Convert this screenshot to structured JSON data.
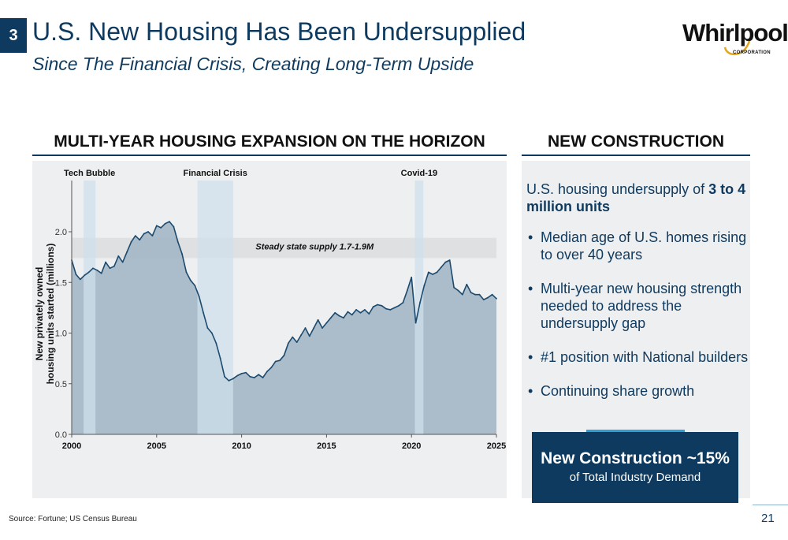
{
  "header": {
    "slide_number": "3",
    "title": "U.S. New Housing Has Been Undersupplied",
    "subtitle": "Since The Financial Crisis, Creating Long-Term Upside",
    "logo_text": "Whirlpool",
    "logo_subtext": "CORPORATION"
  },
  "left_section": {
    "heading": "MULTI-YEAR HOUSING EXPANSION ON THE HORIZON"
  },
  "right_section": {
    "heading": "NEW CONSTRUCTION",
    "intro_prefix": "U.S. housing undersupply of ",
    "intro_bold": "3 to 4 million units",
    "bullets": [
      "Median age of U.S. homes rising to over 40 years",
      "Multi-year new housing strength needed to address the undersupply gap",
      "#1 position with National builders",
      "Continuing share growth"
    ],
    "callout_main": "New Construction ~15%",
    "callout_sub": "of Total Industry Demand"
  },
  "footer": {
    "source": "Source: Fortune; US Census Bureau",
    "page_number": "21"
  },
  "colors": {
    "navy": "#0f3a5f",
    "area_fill": "#a3b6c7",
    "line": "#1c4a6e",
    "event_band": "#cfe0ec",
    "steady_band": "#dfe0e1",
    "accent_blue": "#2f9fd8",
    "panel_bg": "#eeeff0"
  },
  "chart_data": {
    "type": "area",
    "ylabel": "New privately owned housing units started (millions)",
    "xlabel": "",
    "xlim": [
      2000,
      2025
    ],
    "ylim": [
      0,
      2.0
    ],
    "x_ticks": [
      2000,
      2005,
      2010,
      2015,
      2020,
      2025
    ],
    "y_ticks": [
      0.0,
      0.5,
      1.0,
      1.5,
      2.0
    ],
    "y_tick_labels": [
      "0.0",
      "0.5",
      "1.0",
      "1.5",
      "2.0"
    ],
    "grid": false,
    "events": [
      {
        "label": "Tech Bubble",
        "start": 2000.7,
        "end": 2001.4
      },
      {
        "label": "Financial Crisis",
        "start": 2007.4,
        "end": 2009.5
      },
      {
        "label": "Covid-19",
        "start": 2020.2,
        "end": 2020.7
      }
    ],
    "steady_state": {
      "label": "Steady state supply 1.7-1.9M",
      "range": [
        1.74,
        1.94
      ]
    },
    "series": [
      {
        "x": [
          2000.0,
          2000.25,
          2000.5,
          2000.75,
          2001.0,
          2001.25,
          2001.5,
          2001.75,
          2002.0,
          2002.25,
          2002.5,
          2002.75,
          2003.0,
          2003.25,
          2003.5,
          2003.75,
          2004.0,
          2004.25,
          2004.5,
          2004.75,
          2005.0,
          2005.25,
          2005.5,
          2005.75,
          2006.0,
          2006.25,
          2006.5,
          2006.75,
          2007.0,
          2007.25,
          2007.5,
          2007.75,
          2008.0,
          2008.25,
          2008.5,
          2008.75,
          2009.0,
          2009.25,
          2009.5,
          2009.75,
          2010.0,
          2010.25,
          2010.5,
          2010.75,
          2011.0,
          2011.25,
          2011.5,
          2011.75,
          2012.0,
          2012.25,
          2012.5,
          2012.75,
          2013.0,
          2013.25,
          2013.5,
          2013.75,
          2014.0,
          2014.25,
          2014.5,
          2014.75,
          2015.0,
          2015.25,
          2015.5,
          2015.75,
          2016.0,
          2016.25,
          2016.5,
          2016.75,
          2017.0,
          2017.25,
          2017.5,
          2017.75,
          2018.0,
          2018.25,
          2018.5,
          2018.75,
          2019.0,
          2019.25,
          2019.5,
          2019.75,
          2020.0,
          2020.25,
          2020.5,
          2020.75,
          2021.0,
          2021.25,
          2021.5,
          2021.75,
          2022.0,
          2022.25,
          2022.5,
          2022.75,
          2023.0,
          2023.25,
          2023.5,
          2023.75,
          2024.0,
          2024.25,
          2024.5,
          2024.75,
          2025.0
        ],
        "y": [
          1.72,
          1.58,
          1.53,
          1.57,
          1.6,
          1.64,
          1.62,
          1.59,
          1.7,
          1.64,
          1.66,
          1.76,
          1.7,
          1.8,
          1.9,
          1.96,
          1.92,
          1.98,
          2.0,
          1.96,
          2.06,
          2.04,
          2.08,
          2.1,
          2.05,
          1.9,
          1.78,
          1.6,
          1.52,
          1.47,
          1.36,
          1.2,
          1.05,
          1.0,
          0.9,
          0.75,
          0.57,
          0.53,
          0.55,
          0.58,
          0.6,
          0.61,
          0.57,
          0.56,
          0.59,
          0.56,
          0.62,
          0.66,
          0.72,
          0.73,
          0.78,
          0.9,
          0.96,
          0.91,
          0.98,
          1.05,
          0.97,
          1.05,
          1.13,
          1.05,
          1.1,
          1.15,
          1.2,
          1.17,
          1.15,
          1.21,
          1.18,
          1.23,
          1.2,
          1.23,
          1.19,
          1.26,
          1.28,
          1.27,
          1.24,
          1.23,
          1.25,
          1.27,
          1.3,
          1.42,
          1.55,
          1.1,
          1.3,
          1.47,
          1.6,
          1.58,
          1.6,
          1.65,
          1.7,
          1.72,
          1.45,
          1.42,
          1.38,
          1.48,
          1.4,
          1.38,
          1.38,
          1.33,
          1.35,
          1.38,
          1.34
        ]
      }
    ]
  }
}
